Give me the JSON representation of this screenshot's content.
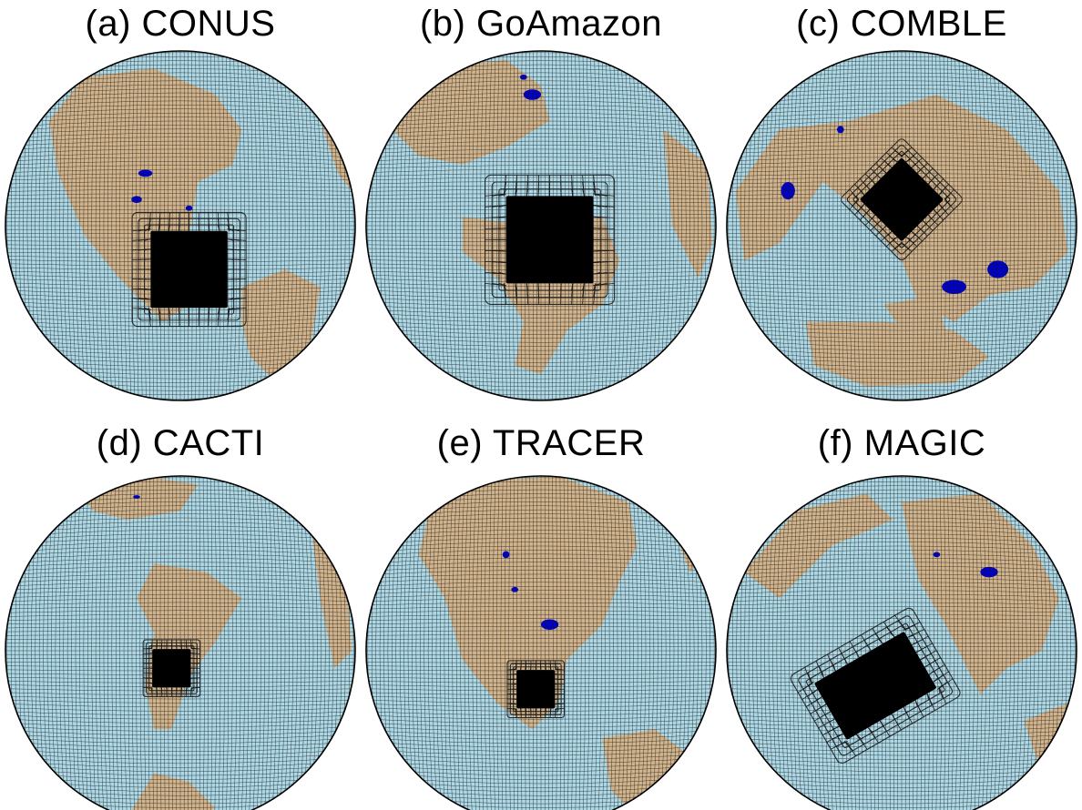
{
  "figure": {
    "panels": [
      {
        "id": "a",
        "title": "(a) CONUS"
      },
      {
        "id": "b",
        "title": "(b) GoAmazon"
      },
      {
        "id": "c",
        "title": "(c) COMBLE"
      },
      {
        "id": "d",
        "title": "(d) CACTI"
      },
      {
        "id": "e",
        "title": "(e) TRACER"
      },
      {
        "id": "f",
        "title": "(f) MAGIC"
      }
    ],
    "colors": {
      "ocean": "#add8e6",
      "land": "#d2b48c",
      "lake": "#0000cc",
      "grid_line": "#1a1a1a",
      "refined_region": "#000000",
      "globe_outline": "#000000"
    },
    "map_style": "orthographic projection of a cubed-sphere mesh with a regionally refined area"
  }
}
